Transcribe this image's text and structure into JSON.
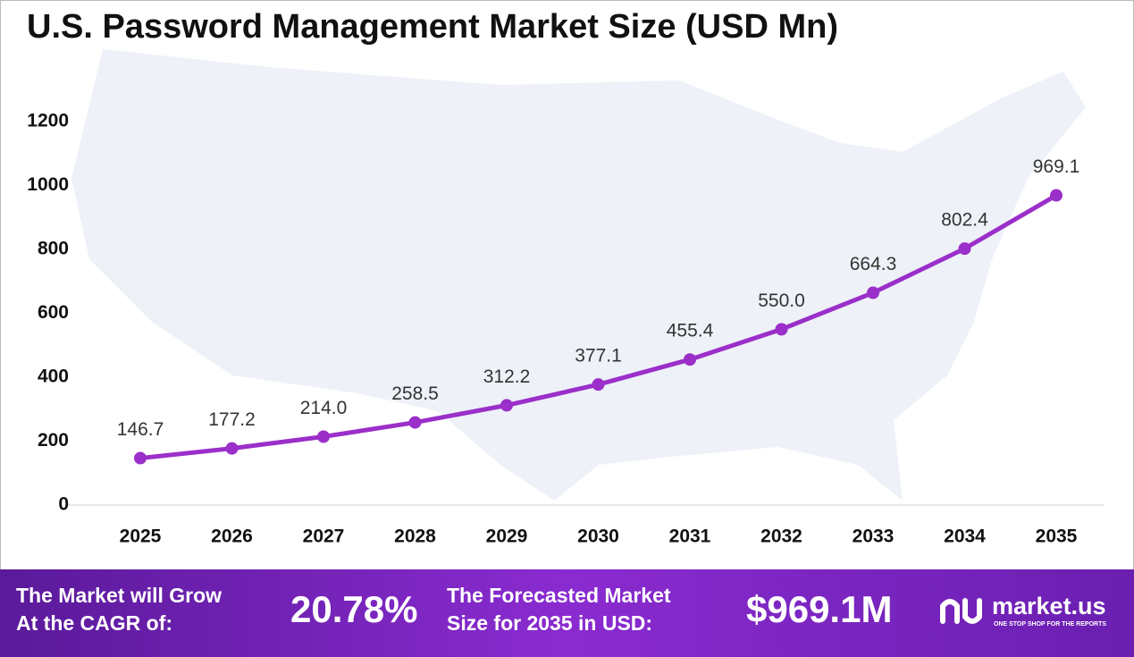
{
  "chart_data": {
    "type": "line",
    "title": "U.S. Password Management Market Size (USD Mn)",
    "categories": [
      "2025",
      "2026",
      "2027",
      "2028",
      "2029",
      "2030",
      "2031",
      "2032",
      "2033",
      "2034",
      "2035"
    ],
    "series": [
      {
        "name": "Market Size",
        "color": "#9b2fc9",
        "values": [
          146.7,
          177.2,
          214.0,
          258.5,
          312.2,
          377.1,
          455.4,
          550.0,
          664.3,
          802.4,
          969.1
        ],
        "value_labels": [
          "146.7",
          "177.2",
          "214.0",
          "258.5",
          "312.2",
          "377.1",
          "455.4",
          "550.0",
          "664.3",
          "802.4",
          "969.1"
        ]
      }
    ],
    "ylim": [
      0,
      1200
    ],
    "yticks": [
      0,
      200,
      400,
      600,
      800,
      1000,
      1200
    ],
    "grid": false
  },
  "footer": {
    "cagr_text": [
      "The Market will Grow",
      "At the CAGR of:"
    ],
    "cagr_value": "20.78%",
    "forecast_text": [
      "The Forecasted Market",
      "Size for 2035 in USD:"
    ],
    "forecast_value": "$969.1M",
    "brand": "market.us",
    "tagline": "ONE STOP SHOP FOR THE REPORTS"
  }
}
